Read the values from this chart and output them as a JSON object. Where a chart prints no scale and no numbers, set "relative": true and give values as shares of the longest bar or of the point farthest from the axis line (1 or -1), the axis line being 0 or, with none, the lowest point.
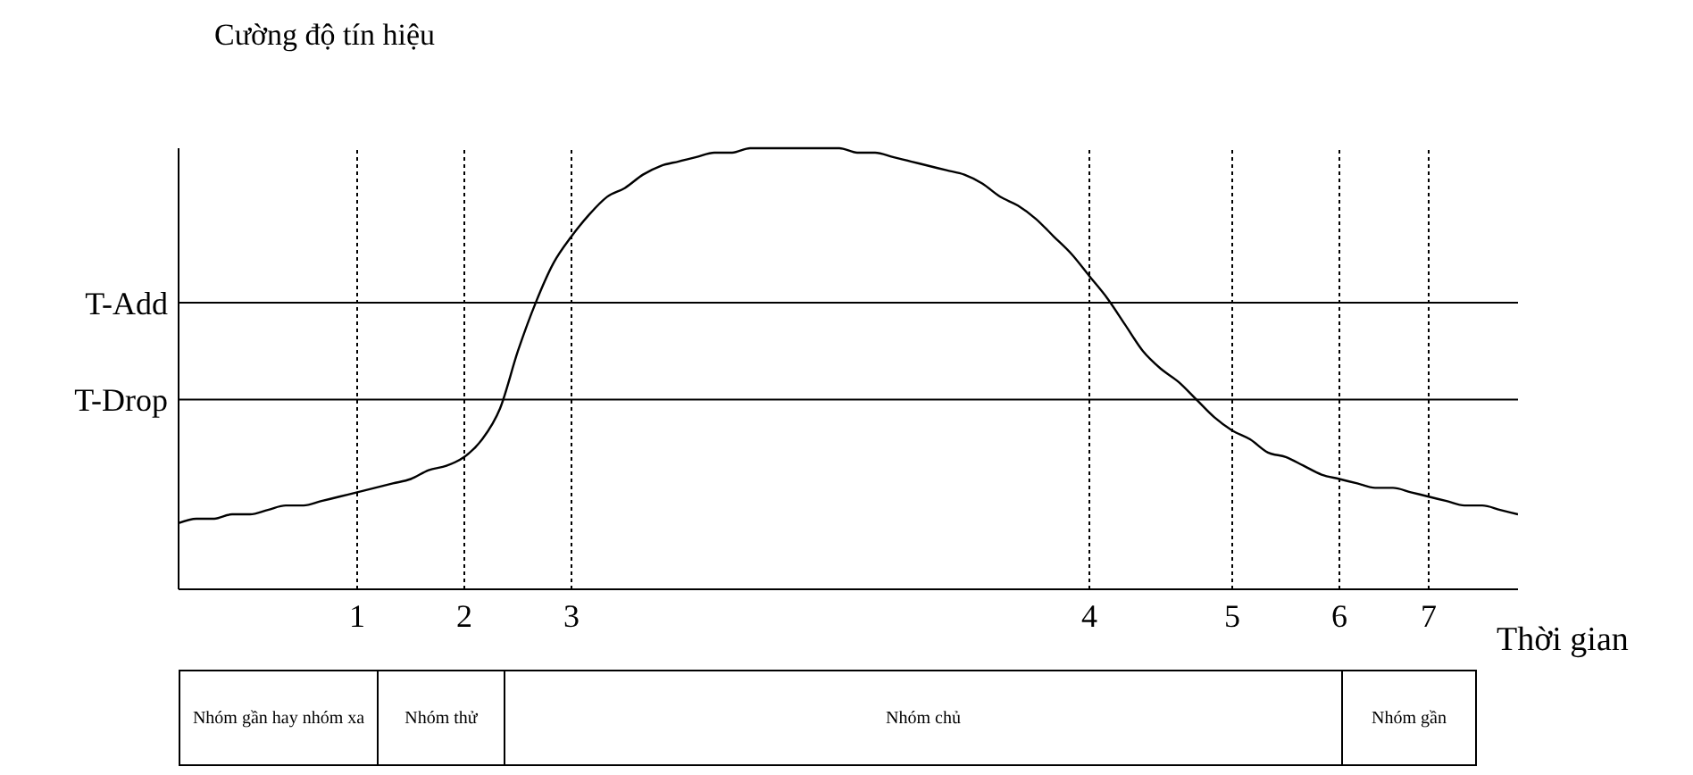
{
  "chart_data": {
    "type": "line",
    "relative": true,
    "xlabel": "Thời gian",
    "ylabel": "Cường độ tín hiệu",
    "categories": [
      null,
      null,
      null,
      null,
      null,
      null,
      null,
      null,
      null,
      null,
      "1",
      null,
      null,
      null,
      null,
      null,
      "2",
      null,
      null,
      null,
      null,
      null,
      "3",
      null,
      null,
      null,
      null,
      null,
      null,
      null,
      null,
      null,
      null,
      null,
      null,
      null,
      null,
      null,
      null,
      null,
      null,
      null,
      null,
      null,
      null,
      null,
      null,
      null,
      null,
      null,
      null,
      "4",
      null,
      null,
      null,
      null,
      null,
      null,
      null,
      "5",
      null,
      null,
      null,
      null,
      null,
      "6",
      null,
      null,
      null,
      null,
      "7",
      null,
      null,
      null,
      null,
      null
    ],
    "series": [
      {
        "color": "#000000",
        "values": [
          0.15,
          0.16,
          0.16,
          0.17,
          0.17,
          0.18,
          0.19,
          0.19,
          0.2,
          0.21,
          0.22,
          0.23,
          0.24,
          0.25,
          0.27,
          0.28,
          0.3,
          0.34,
          0.41,
          0.54,
          0.65,
          0.74,
          0.8,
          0.85,
          0.89,
          0.91,
          0.94,
          0.96,
          0.97,
          0.98,
          0.99,
          0.99,
          1.0,
          1.0,
          1.0,
          1.0,
          1.0,
          1.0,
          0.99,
          0.99,
          0.98,
          0.97,
          0.96,
          0.95,
          0.94,
          0.92,
          0.89,
          0.87,
          0.84,
          0.8,
          0.76,
          0.71,
          0.66,
          0.6,
          0.54,
          0.5,
          0.47,
          0.43,
          0.39,
          0.36,
          0.34,
          0.31,
          0.3,
          0.28,
          0.26,
          0.25,
          0.24,
          0.23,
          0.23,
          0.22,
          0.21,
          0.2,
          0.19,
          0.19,
          0.18,
          0.17
        ]
      }
    ],
    "ref_lines": [
      {
        "axis": "y",
        "value": 0.65,
        "label": "T-Add",
        "color": "#000000",
        "line_style": "solid"
      },
      {
        "axis": "y",
        "value": 0.43,
        "label": "T-Drop",
        "color": "#000000",
        "line_style": "solid"
      },
      {
        "axis": "x",
        "value": "1",
        "color": "#000000",
        "line_style": "dotted"
      },
      {
        "axis": "x",
        "value": "2",
        "color": "#000000",
        "line_style": "dotted"
      },
      {
        "axis": "x",
        "value": "3",
        "color": "#000000",
        "line_style": "dotted"
      },
      {
        "axis": "x",
        "value": "4",
        "color": "#000000",
        "line_style": "dotted"
      },
      {
        "axis": "x",
        "value": "5",
        "color": "#000000",
        "line_style": "dotted"
      },
      {
        "axis": "x",
        "value": "6",
        "color": "#000000",
        "line_style": "dotted"
      },
      {
        "axis": "x",
        "value": "7",
        "color": "#000000",
        "line_style": "dotted"
      }
    ],
    "annotations": [
      "Nhóm gần hay nhóm xa",
      "Nhóm thử",
      "Nhóm chủ",
      "Nhóm gần"
    ],
    "marker": "none",
    "line_style": "solid"
  }
}
